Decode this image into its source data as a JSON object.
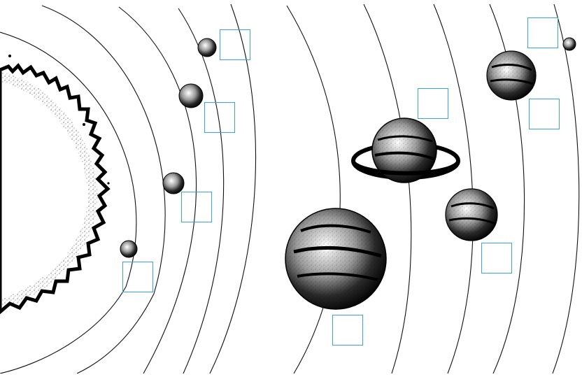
{
  "diagram": {
    "subject": "solar-system-orbits",
    "colors": {
      "background": "#ffffff",
      "ink": "#111111",
      "answer_box_border": "#3aa6dd"
    },
    "bodies": [
      {
        "id": "sun",
        "icon": "sun-icon"
      },
      {
        "id": "planet-1",
        "icon": "small-planet-icon"
      },
      {
        "id": "planet-2",
        "icon": "small-planet-icon"
      },
      {
        "id": "planet-3",
        "icon": "small-planet-icon"
      },
      {
        "id": "planet-4",
        "icon": "small-planet-icon"
      },
      {
        "id": "planet-5",
        "icon": "gas-giant-icon"
      },
      {
        "id": "planet-6",
        "icon": "ringed-planet-icon"
      },
      {
        "id": "planet-7",
        "icon": "medium-planet-icon"
      },
      {
        "id": "planet-8",
        "icon": "medium-planet-icon"
      },
      {
        "id": "planet-9",
        "icon": "dwarf-planet-icon"
      }
    ],
    "answer_boxes": [
      {
        "id": "label-box-1",
        "value": ""
      },
      {
        "id": "label-box-2",
        "value": ""
      },
      {
        "id": "label-box-3",
        "value": ""
      },
      {
        "id": "label-box-4",
        "value": ""
      },
      {
        "id": "label-box-5",
        "value": ""
      },
      {
        "id": "label-box-6",
        "value": ""
      },
      {
        "id": "label-box-7",
        "value": ""
      },
      {
        "id": "label-box-8",
        "value": ""
      },
      {
        "id": "label-box-9",
        "value": ""
      }
    ]
  }
}
